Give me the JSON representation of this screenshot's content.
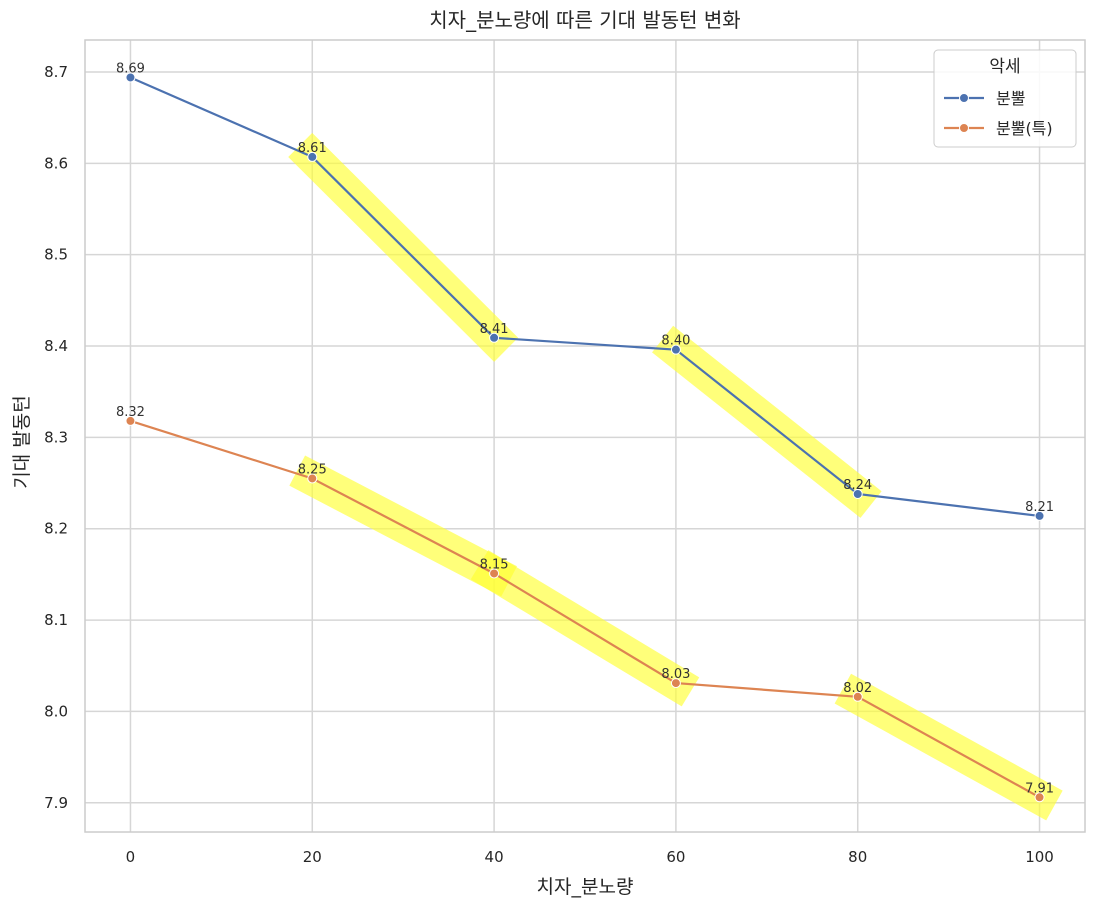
{
  "chart_data": {
    "type": "line",
    "title": "치자_분노량에 따른 기대 발동턴 변화",
    "xlabel": "치자_분노량",
    "ylabel": "기대 발동턴",
    "x": [
      0,
      20,
      40,
      60,
      80,
      100
    ],
    "xlim": [
      -5,
      105
    ],
    "ylim": [
      7.868,
      8.735
    ],
    "xticks": [
      "0",
      "20",
      "40",
      "60",
      "80",
      "100"
    ],
    "yticks": [
      "7.9",
      "8.0",
      "8.1",
      "8.2",
      "8.3",
      "8.4",
      "8.5",
      "8.6",
      "8.7"
    ],
    "grid": true,
    "legend": {
      "title": "악세",
      "placement": "top-right"
    },
    "series": [
      {
        "name": "분뿔",
        "color": "#4C72B0",
        "values": [
          8.694,
          8.607,
          8.409,
          8.396,
          8.238,
          8.214
        ],
        "labels": [
          "8.69",
          "8.61",
          "8.41",
          "8.40",
          "8.24",
          "8.21"
        ]
      },
      {
        "name": "분뿔(특)",
        "color": "#DD8452",
        "values": [
          8.318,
          8.255,
          8.151,
          8.031,
          8.016,
          7.906
        ],
        "labels": [
          "8.32",
          "8.25",
          "8.15",
          "8.03",
          "8.02",
          "7.91"
        ]
      }
    ],
    "highlights": [
      {
        "series": 0,
        "from_x": 20,
        "to_x": 40
      },
      {
        "series": 0,
        "from_x": 60,
        "to_x": 80
      },
      {
        "series": 1,
        "from_x": 20,
        "to_x": 40
      },
      {
        "series": 1,
        "from_x": 40,
        "to_x": 60
      },
      {
        "series": 1,
        "from_x": 80,
        "to_x": 100
      }
    ],
    "highlight_color": "#FFFF33"
  }
}
